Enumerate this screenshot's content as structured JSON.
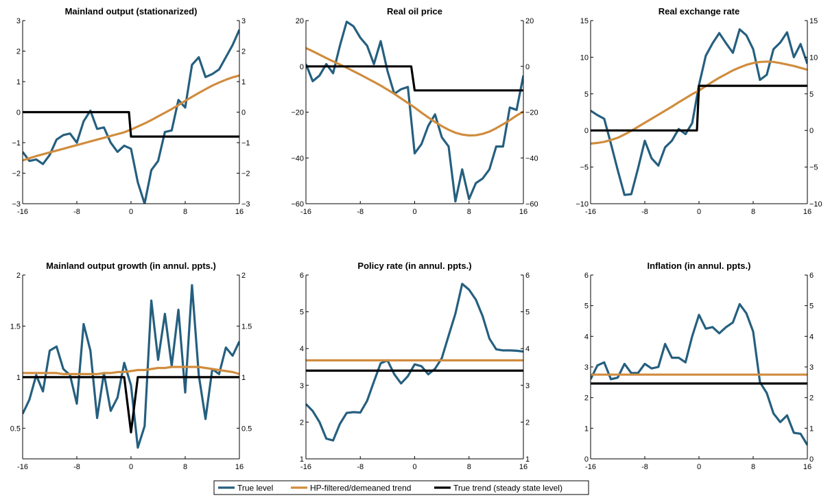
{
  "colors": {
    "true_level": "#255f7f",
    "hp_trend": "#d08c3e",
    "true_trend": "#000000"
  },
  "legend": {
    "entries": [
      {
        "label": "True level",
        "color": "#255f7f"
      },
      {
        "label": "HP-filtered/demeaned trend",
        "color": "#d08c3e"
      },
      {
        "label": "True trend (steady state level)",
        "color": "#000000"
      }
    ]
  },
  "chart_data": [
    {
      "type": "line",
      "title": "Mainland output (stationarized)",
      "xlabel": "",
      "ylabel": "",
      "xlim": [
        -16,
        16
      ],
      "ylim": [
        -3,
        3
      ],
      "xticks": [
        -16,
        -8,
        0,
        8,
        16
      ],
      "yticks": [
        -3,
        -2,
        -1,
        0,
        1,
        2,
        3
      ],
      "x": [
        -16,
        -15,
        -14,
        -13,
        -12,
        -11,
        -10,
        -9,
        -8,
        -7,
        -6,
        -5,
        -4,
        -3,
        -2,
        -1,
        0,
        1,
        2,
        3,
        4,
        5,
        6,
        7,
        8,
        9,
        10,
        11,
        12,
        13,
        14,
        15,
        16
      ],
      "series": [
        {
          "name": "True level",
          "values": [
            -1.3,
            -1.6,
            -1.55,
            -1.7,
            -1.4,
            -0.9,
            -0.75,
            -0.7,
            -1.0,
            -0.3,
            0.05,
            -0.55,
            -0.5,
            -1.0,
            -1.3,
            -1.1,
            -1.2,
            -2.3,
            -3.0,
            -1.9,
            -1.6,
            -0.65,
            -0.6,
            0.4,
            0.15,
            1.55,
            1.8,
            1.15,
            1.25,
            1.4,
            1.8,
            2.2,
            2.7
          ]
        },
        {
          "name": "HP-filtered/demeaned trend",
          "values": [
            -1.58,
            -1.51,
            -1.44,
            -1.38,
            -1.32,
            -1.26,
            -1.2,
            -1.14,
            -1.08,
            -1.02,
            -0.96,
            -0.9,
            -0.84,
            -0.78,
            -0.72,
            -0.66,
            -0.57,
            -0.47,
            -0.37,
            -0.26,
            -0.14,
            -0.02,
            0.1,
            0.23,
            0.37,
            0.5,
            0.63,
            0.75,
            0.87,
            0.97,
            1.06,
            1.14,
            1.2
          ]
        },
        {
          "name": "True trend (steady state level)",
          "values": [
            0,
            0,
            0,
            0,
            0,
            0,
            0,
            0,
            0,
            0,
            0,
            0,
            0,
            0,
            0,
            0,
            -0.8,
            -0.8,
            -0.8,
            -0.8,
            -0.8,
            -0.8,
            -0.8,
            -0.8,
            -0.8,
            -0.8,
            -0.8,
            -0.8,
            -0.8,
            -0.8,
            -0.8,
            -0.8,
            -0.8
          ],
          "trend_break_x": -0.3
        }
      ]
    },
    {
      "type": "line",
      "title": "Real oil price",
      "xlabel": "",
      "ylabel": "",
      "xlim": [
        -16,
        16
      ],
      "ylim": [
        -60,
        20
      ],
      "xticks": [
        -16,
        -8,
        0,
        8,
        16
      ],
      "yticks": [
        -60,
        -40,
        -20,
        0,
        20
      ],
      "x": [
        -16,
        -15,
        -14,
        -13,
        -12,
        -11,
        -10,
        -9,
        -8,
        -7,
        -6,
        -5,
        -4,
        -3,
        -2,
        -1,
        0,
        1,
        2,
        3,
        4,
        5,
        6,
        7,
        8,
        9,
        10,
        11,
        12,
        13,
        14,
        15,
        16
      ],
      "series": [
        {
          "name": "True level",
          "values": [
            1,
            -6.5,
            -4,
            1,
            -3,
            9,
            19.5,
            17.5,
            12.5,
            9,
            1,
            11,
            -2,
            -12,
            -10,
            -9,
            -38,
            -34,
            -26,
            -21,
            -31,
            -35,
            -59,
            -45,
            -58,
            -51,
            -49,
            -45,
            -35,
            -35,
            -18,
            -19,
            -4
          ]
        },
        {
          "name": "HP-filtered/demeaned trend",
          "values": [
            8,
            6.6,
            5.1,
            3.6,
            2.2,
            0.8,
            -0.6,
            -2.1,
            -3.6,
            -5.2,
            -6.8,
            -8.4,
            -10.2,
            -12.0,
            -14.0,
            -16.0,
            -18.0,
            -20.2,
            -22.3,
            -24.3,
            -26.1,
            -27.7,
            -29.0,
            -29.8,
            -30.2,
            -30.1,
            -29.5,
            -28.5,
            -27.0,
            -25.3,
            -23.5,
            -21.5,
            -19.8
          ]
        },
        {
          "name": "True trend (steady state level)",
          "values": [
            0,
            0,
            0,
            0,
            0,
            0,
            0,
            0,
            0,
            0,
            0,
            0,
            0,
            0,
            0,
            0,
            -10.5,
            -10.5,
            -10.5,
            -10.5,
            -10.5,
            -10.5,
            -10.5,
            -10.5,
            -10.5,
            -10.5,
            -10.5,
            -10.5,
            -10.5,
            -10.5,
            -10.5,
            -10.5,
            -10.5
          ],
          "trend_break_x": -0.5
        }
      ]
    },
    {
      "type": "line",
      "title": "Real exchange rate",
      "xlabel": "",
      "ylabel": "",
      "xlim": [
        -16,
        16
      ],
      "ylim": [
        -10,
        15
      ],
      "xticks": [
        -16,
        -8,
        0,
        8,
        16
      ],
      "yticks": [
        -10,
        -5,
        0,
        5,
        10,
        15
      ],
      "x": [
        -16,
        -15,
        -14,
        -13,
        -12,
        -11,
        -10,
        -9,
        -8,
        -7,
        -6,
        -5,
        -4,
        -3,
        -2,
        -1,
        0,
        1,
        2,
        3,
        4,
        5,
        6,
        7,
        8,
        9,
        10,
        11,
        12,
        13,
        14,
        15,
        16
      ],
      "series": [
        {
          "name": "True level",
          "values": [
            2.7,
            2.1,
            1.6,
            -1.8,
            -5.4,
            -8.8,
            -8.7,
            -5.2,
            -1.4,
            -3.8,
            -4.8,
            -2.3,
            -1.4,
            0.2,
            -0.5,
            1.0,
            6.2,
            10.2,
            11.9,
            13.3,
            11.9,
            10.6,
            13.8,
            13.0,
            11.1,
            6.9,
            7.6,
            11.1,
            12.0,
            13.4,
            10.0,
            11.8,
            9.1
          ]
        },
        {
          "name": "HP-filtered/demeaned trend",
          "values": [
            -1.8,
            -1.7,
            -1.55,
            -1.3,
            -1.0,
            -0.55,
            -0.05,
            0.5,
            1.05,
            1.6,
            2.15,
            2.7,
            3.25,
            3.85,
            4.4,
            4.95,
            5.45,
            6.05,
            6.65,
            7.2,
            7.7,
            8.2,
            8.6,
            8.95,
            9.2,
            9.35,
            9.4,
            9.35,
            9.2,
            9.0,
            8.8,
            8.55,
            8.3
          ]
        },
        {
          "name": "True trend (steady state level)",
          "values": [
            0,
            0,
            0,
            0,
            0,
            0,
            0,
            0,
            0,
            0,
            0,
            0,
            0,
            0,
            0,
            0,
            6.1,
            6.1,
            6.1,
            6.1,
            6.1,
            6.1,
            6.1,
            6.1,
            6.1,
            6.1,
            6.1,
            6.1,
            6.1,
            6.1,
            6.1,
            6.1,
            6.1
          ],
          "trend_break_x": -0.3
        }
      ]
    },
    {
      "type": "line",
      "title": "Mainland output growth (in annul. ppts.)",
      "xlabel": "",
      "ylabel": "",
      "xlim": [
        -16,
        16
      ],
      "ylim": [
        0.2,
        2
      ],
      "xticks": [
        -16,
        -8,
        0,
        8,
        16
      ],
      "yticks": [
        0.5,
        1,
        1.5,
        2
      ],
      "x": [
        -16,
        -15,
        -14,
        -13,
        -12,
        -11,
        -10,
        -9,
        -8,
        -7,
        -6,
        -5,
        -4,
        -3,
        -2,
        -1,
        0,
        1,
        2,
        3,
        4,
        5,
        6,
        7,
        8,
        9,
        10,
        11,
        12,
        13,
        14,
        15,
        16
      ],
      "series": [
        {
          "name": "True level",
          "values": [
            0.64,
            0.78,
            1.02,
            0.86,
            1.26,
            1.3,
            1.08,
            1.02,
            0.74,
            1.52,
            1.26,
            0.6,
            1.04,
            0.67,
            0.8,
            1.14,
            0.92,
            0.31,
            0.52,
            1.75,
            1.17,
            1.62,
            1.11,
            1.66,
            0.85,
            1.9,
            1.02,
            0.59,
            1.08,
            1.03,
            1.29,
            1.21,
            1.35
          ]
        },
        {
          "name": "HP-filtered/demeaned trend",
          "values": [
            1.04,
            1.04,
            1.04,
            1.04,
            1.04,
            1.04,
            1.03,
            1.03,
            1.03,
            1.03,
            1.03,
            1.03,
            1.04,
            1.04,
            1.05,
            1.05,
            1.06,
            1.07,
            1.07,
            1.08,
            1.09,
            1.09,
            1.1,
            1.1,
            1.1,
            1.1,
            1.1,
            1.09,
            1.08,
            1.07,
            1.06,
            1.05,
            1.03
          ]
        },
        {
          "name": "True trend (steady state level)",
          "values": [
            1,
            1,
            1,
            1,
            1,
            1,
            1,
            1,
            1,
            1,
            1,
            1,
            1,
            1,
            1,
            1,
            0.46,
            1,
            1,
            1,
            1,
            1,
            1,
            1,
            1,
            1,
            1,
            1,
            1,
            1,
            1,
            1,
            1
          ]
        }
      ]
    },
    {
      "type": "line",
      "title": "Policy rate (in annul. ppts.)",
      "xlabel": "",
      "ylabel": "",
      "xlim": [
        -16,
        16
      ],
      "ylim": [
        1,
        6
      ],
      "xticks": [
        -16,
        -8,
        0,
        8,
        16
      ],
      "yticks": [
        1,
        2,
        3,
        4,
        5,
        6
      ],
      "x": [
        -16,
        -15,
        -14,
        -13,
        -12,
        -11,
        -10,
        -9,
        -8,
        -7,
        -6,
        -5,
        -4,
        -3,
        -2,
        -1,
        0,
        1,
        2,
        3,
        4,
        5,
        6,
        7,
        8,
        9,
        10,
        11,
        12,
        13,
        14,
        15,
        16
      ],
      "series": [
        {
          "name": "True level",
          "values": [
            2.49,
            2.3,
            2.0,
            1.55,
            1.5,
            1.95,
            2.25,
            2.27,
            2.26,
            2.58,
            3.1,
            3.6,
            3.68,
            3.3,
            3.05,
            3.25,
            3.57,
            3.52,
            3.3,
            3.45,
            3.74,
            4.35,
            4.95,
            5.76,
            5.6,
            5.33,
            4.88,
            4.27,
            3.98,
            3.95,
            3.95,
            3.94,
            3.92
          ]
        },
        {
          "name": "HP-filtered/demeaned trend",
          "values": [
            3.68,
            3.68,
            3.68,
            3.68,
            3.68,
            3.68,
            3.68,
            3.68,
            3.68,
            3.68,
            3.68,
            3.68,
            3.68,
            3.68,
            3.68,
            3.68,
            3.68,
            3.68,
            3.68,
            3.68,
            3.68,
            3.68,
            3.68,
            3.68,
            3.68,
            3.68,
            3.68,
            3.68,
            3.68,
            3.68,
            3.68,
            3.68,
            3.68
          ]
        },
        {
          "name": "True trend (steady state level)",
          "values": [
            3.4,
            3.4,
            3.4,
            3.4,
            3.4,
            3.4,
            3.4,
            3.4,
            3.4,
            3.4,
            3.4,
            3.4,
            3.4,
            3.4,
            3.4,
            3.4,
            3.4,
            3.4,
            3.4,
            3.4,
            3.4,
            3.4,
            3.4,
            3.4,
            3.4,
            3.4,
            3.4,
            3.4,
            3.4,
            3.4,
            3.4,
            3.4,
            3.4
          ]
        }
      ]
    },
    {
      "type": "line",
      "title": "Inflation (in annul. ppts.)",
      "xlabel": "",
      "ylabel": "",
      "xlim": [
        -16,
        16
      ],
      "ylim": [
        0,
        6
      ],
      "xticks": [
        -16,
        -8,
        0,
        8,
        16
      ],
      "yticks": [
        0,
        1,
        2,
        3,
        4,
        5,
        6
      ],
      "x": [
        -16,
        -15,
        -14,
        -13,
        -12,
        -11,
        -10,
        -9,
        -8,
        -7,
        -6,
        -5,
        -4,
        -3,
        -2,
        -1,
        0,
        1,
        2,
        3,
        4,
        5,
        6,
        7,
        8,
        9,
        10,
        11,
        12,
        13,
        14,
        15,
        16
      ],
      "series": [
        {
          "name": "True level",
          "values": [
            2.6,
            3.05,
            3.15,
            2.6,
            2.65,
            3.1,
            2.8,
            2.8,
            3.1,
            2.95,
            3.0,
            3.75,
            3.3,
            3.3,
            3.15,
            4.0,
            4.7,
            4.25,
            4.3,
            4.1,
            4.3,
            4.45,
            5.05,
            4.75,
            4.15,
            2.5,
            2.15,
            1.48,
            1.2,
            1.42,
            0.85,
            0.82,
            0.45
          ]
        },
        {
          "name": "HP-filtered/demeaned trend",
          "values": [
            2.75,
            2.75,
            2.75,
            2.75,
            2.75,
            2.75,
            2.75,
            2.75,
            2.75,
            2.75,
            2.75,
            2.75,
            2.75,
            2.75,
            2.75,
            2.75,
            2.75,
            2.75,
            2.75,
            2.75,
            2.75,
            2.75,
            2.75,
            2.75,
            2.75,
            2.75,
            2.75,
            2.75,
            2.75,
            2.75,
            2.75,
            2.75,
            2.75
          ]
        },
        {
          "name": "True trend (steady state level)",
          "values": [
            2.46,
            2.46,
            2.46,
            2.46,
            2.46,
            2.46,
            2.46,
            2.46,
            2.46,
            2.46,
            2.46,
            2.46,
            2.46,
            2.46,
            2.46,
            2.46,
            2.46,
            2.46,
            2.46,
            2.46,
            2.46,
            2.46,
            2.46,
            2.46,
            2.46,
            2.46,
            2.46,
            2.46,
            2.46,
            2.46,
            2.46,
            2.46,
            2.46
          ]
        }
      ]
    }
  ]
}
